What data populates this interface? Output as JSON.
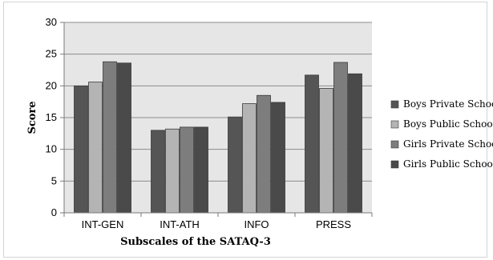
{
  "chart_data": {
    "type": "bar",
    "title": "",
    "xlabel": "Subscales of the SATAQ-3",
    "ylabel": "Score",
    "ylim": [
      0,
      30
    ],
    "yticks": [
      0,
      5,
      10,
      15,
      20,
      25,
      30
    ],
    "grid": true,
    "legend_position": "right",
    "categories": [
      "INT-GEN",
      "INT-ATH",
      "INFO",
      "PRESS"
    ],
    "series": [
      {
        "name": "Boys Private School",
        "color": "#555555",
        "values": [
          20.0,
          13.0,
          15.1,
          21.7
        ]
      },
      {
        "name": "Boys Public School",
        "color": "#b4b4b4",
        "values": [
          20.6,
          13.2,
          17.2,
          19.6
        ]
      },
      {
        "name": "Girls Private School",
        "color": "#7d7d7d",
        "values": [
          23.8,
          13.5,
          18.5,
          23.7
        ]
      },
      {
        "name": "Girls Public School",
        "color": "#4a4a4a",
        "values": [
          23.6,
          13.5,
          17.4,
          21.9
        ]
      }
    ],
    "plot_background": "#e6e6e6",
    "gridline_color": "#8c8c8c"
  }
}
